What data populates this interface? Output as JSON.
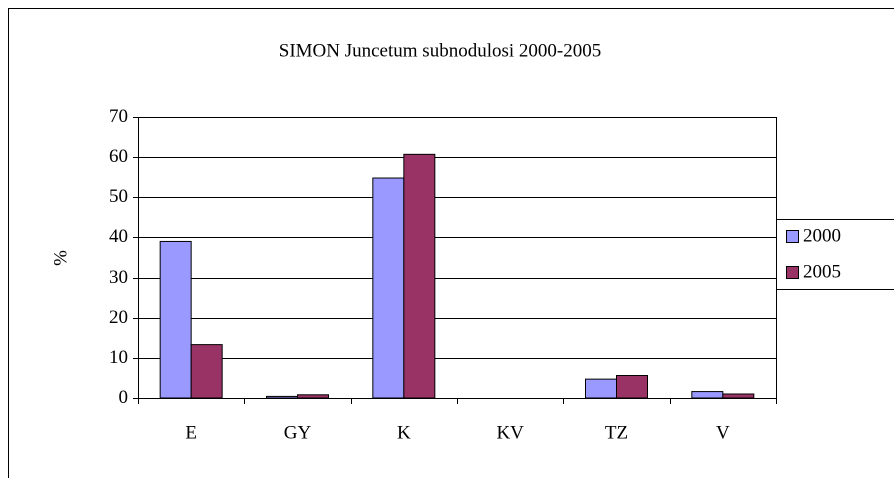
{
  "chart_data": {
    "type": "bar",
    "title": "SIMON Juncetum subnodulosi 2000-2005",
    "y_label": "%",
    "categories": [
      "E",
      "GY",
      "K",
      "KV",
      "TZ",
      "V"
    ],
    "series": [
      {
        "name": "2000",
        "color": "#9999ff",
        "values": [
          39,
          0.4,
          54.8,
          0,
          4.7,
          1.6
        ]
      },
      {
        "name": "2005",
        "color": "#993366",
        "values": [
          13.3,
          0.8,
          60.7,
          0,
          5.6,
          1.0
        ]
      }
    ],
    "ylim": [
      0,
      70
    ],
    "yticks": [
      0,
      10,
      20,
      30,
      40,
      50,
      60,
      70
    ],
    "grid": true,
    "legend": "right"
  }
}
